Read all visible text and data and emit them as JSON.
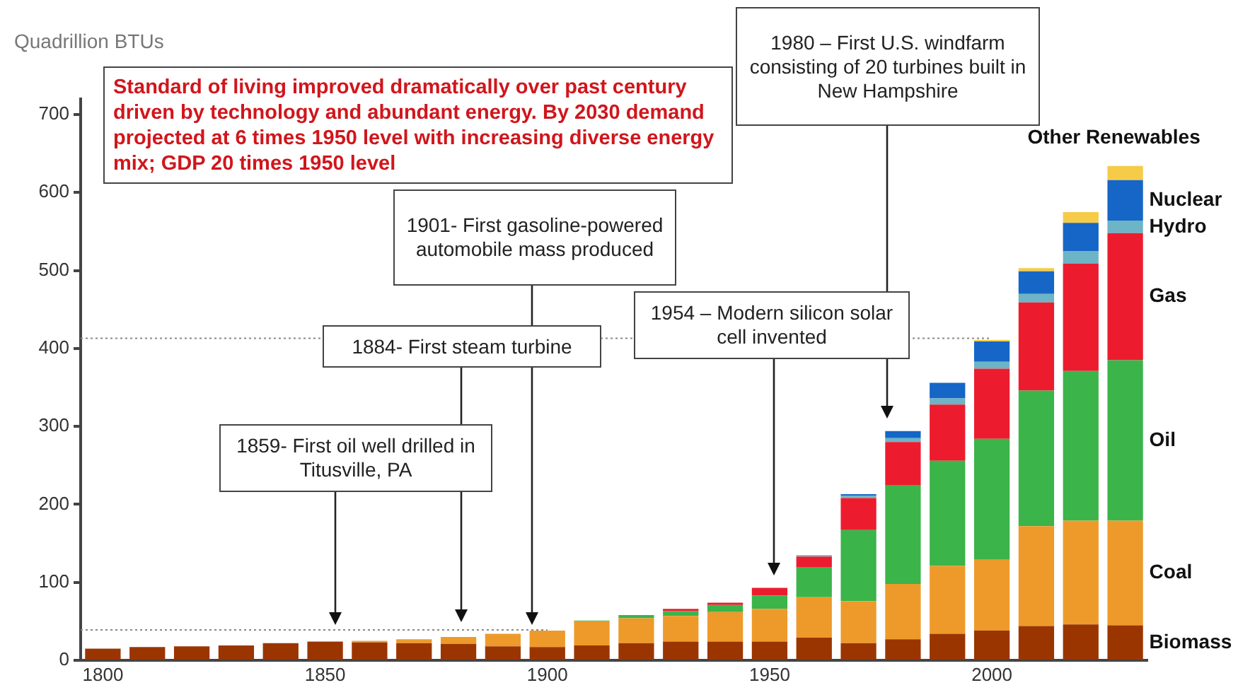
{
  "chart_data": {
    "type": "bar",
    "stacked": true,
    "ylabel": "Quadrillion BTUs",
    "categories": [
      "1800",
      null,
      null,
      null,
      null,
      "1850",
      null,
      null,
      null,
      null,
      "1900",
      null,
      null,
      null,
      null,
      "1950",
      null,
      null,
      null,
      null,
      "2000",
      null,
      null,
      null
    ],
    "series": [
      {
        "name": "Biomass",
        "color": "#9a3500",
        "values": [
          15,
          17,
          18,
          19,
          22,
          24,
          23,
          22,
          21,
          18,
          17,
          19,
          22,
          24,
          24,
          24,
          29,
          22,
          27,
          34,
          38,
          44,
          46,
          45
        ]
      },
      {
        "name": "Coal",
        "color": "#ee9a2a",
        "values": [
          0,
          0,
          0,
          0,
          0,
          0,
          2,
          5,
          9,
          16,
          21,
          31,
          32,
          33,
          38,
          42,
          52,
          54,
          71,
          87,
          91,
          128,
          133,
          134
        ]
      },
      {
        "name": "Oil",
        "color": "#3bb44a",
        "values": [
          0,
          0,
          0,
          0,
          0,
          0,
          0,
          0,
          0,
          0,
          0,
          1,
          4,
          6,
          9,
          17,
          38,
          91,
          127,
          135,
          155,
          174,
          192,
          206
        ]
      },
      {
        "name": "Gas",
        "color": "#ec1c2e",
        "values": [
          0,
          0,
          0,
          0,
          0,
          0,
          0,
          0,
          0,
          0,
          0,
          0,
          0,
          3,
          3,
          10,
          14,
          41,
          55,
          72,
          90,
          113,
          138,
          163
        ]
      },
      {
        "name": "Hydro",
        "color": "#6cb4c6",
        "values": [
          0,
          0,
          0,
          0,
          0,
          0,
          0,
          0,
          0,
          0,
          0,
          0,
          0,
          0,
          0,
          0,
          2,
          3,
          5,
          8,
          9,
          11,
          16,
          16
        ]
      },
      {
        "name": "Nuclear",
        "color": "#1566c6",
        "values": [
          0,
          0,
          0,
          0,
          0,
          0,
          0,
          0,
          0,
          0,
          0,
          0,
          0,
          0,
          0,
          0,
          0,
          2,
          9,
          20,
          26,
          29,
          36,
          52
        ]
      },
      {
        "name": "Other Renewables",
        "color": "#f5cb48",
        "values": [
          0,
          0,
          0,
          0,
          0,
          0,
          0,
          0,
          0,
          0,
          0,
          0,
          0,
          0,
          0,
          0,
          0,
          0,
          0,
          0,
          2,
          4,
          14,
          18
        ]
      }
    ],
    "ylim": [
      0,
      720
    ],
    "yticks": [
      0,
      100,
      200,
      300,
      400,
      500,
      600,
      700
    ],
    "grid": false,
    "legend": false,
    "ref_lines": [
      {
        "axis": "y",
        "value": 413,
        "color": "#888888",
        "line_style": "dotted"
      },
      {
        "axis": "y",
        "value": 39,
        "color": "#888888",
        "line_style": "dotted"
      }
    ],
    "annotations": [
      "Standard  of living improved dramatically over past century driven by technology and  abundant  energy.  By 2030 demand  projected at 6 times 1950 level with increasing diverse energy mix; GDP 20 times 1950 level",
      "1980 – First U.S. windfarm consisting of 20 turbines built in New Hampshire",
      "1901- First gasoline-powered automobile mass produced",
      "1884- First steam turbine",
      "1954 – Modern silicon solar cell invented",
      "1859- First oil well drilled in Titusville, PA"
    ]
  }
}
